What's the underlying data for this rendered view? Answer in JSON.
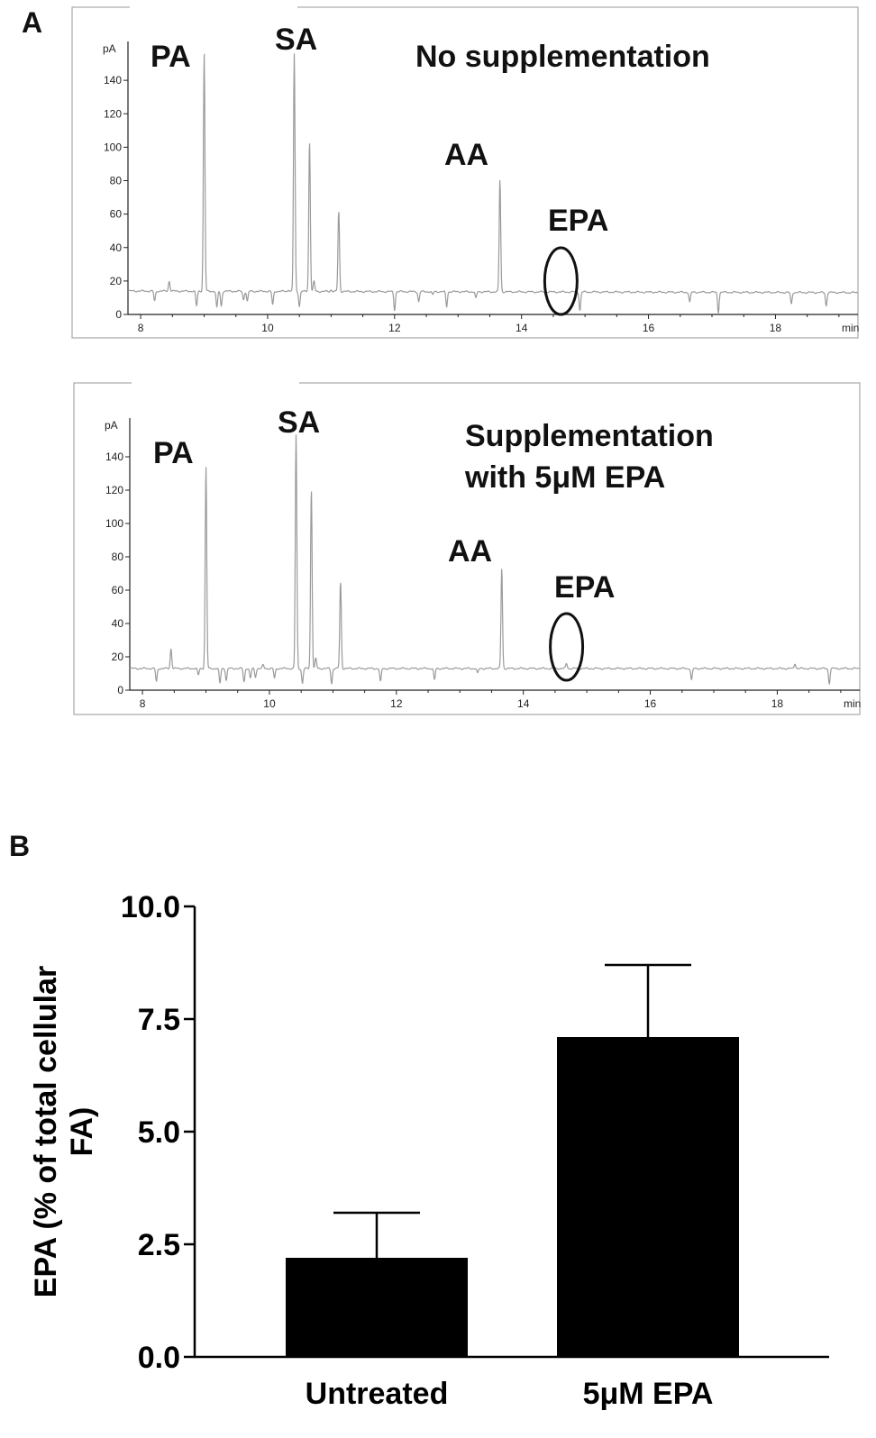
{
  "panels": {
    "a_letter": "A",
    "b_letter": "B"
  },
  "chart_data": [
    {
      "type": "line",
      "panel": "A",
      "title": "No supplementation",
      "title_lines": [
        "No supplementation"
      ],
      "xlabel": "min",
      "ylabel": "pA",
      "xlim": [
        7.8,
        19.3
      ],
      "ylim": [
        0,
        160
      ],
      "xticks": [
        8,
        10,
        12,
        14,
        16,
        18
      ],
      "yticks": [
        0,
        20,
        40,
        60,
        80,
        100,
        120,
        140
      ],
      "grid": false,
      "baseline": 14,
      "peaks": [
        [
          8.22,
          8
        ],
        [
          8.45,
          20
        ],
        [
          8.88,
          5
        ],
        [
          9.0,
          156
        ],
        [
          9.2,
          4
        ],
        [
          9.27,
          5
        ],
        [
          9.62,
          9
        ],
        [
          9.68,
          8
        ],
        [
          9.85,
          14
        ],
        [
          10.08,
          6
        ],
        [
          10.33,
          15
        ],
        [
          10.42,
          156
        ],
        [
          10.5,
          5
        ],
        [
          10.66,
          104
        ],
        [
          10.73,
          20
        ],
        [
          11.0,
          15
        ],
        [
          11.12,
          62
        ],
        [
          11.75,
          14
        ],
        [
          12.0,
          3
        ],
        [
          12.38,
          8
        ],
        [
          12.6,
          12
        ],
        [
          12.82,
          5
        ],
        [
          13.28,
          10
        ],
        [
          13.66,
          81
        ],
        [
          14.92,
          3
        ],
        [
          16.65,
          8
        ],
        [
          17.1,
          2
        ],
        [
          18.25,
          7
        ],
        [
          18.8,
          6
        ]
      ],
      "annotations": [
        {
          "label": "PA",
          "x": 9.0
        },
        {
          "label": "SA",
          "x": 10.42
        },
        {
          "label": "AA",
          "x": 13.66
        },
        {
          "label": "EPA",
          "x": 14.62,
          "circled": true
        }
      ]
    },
    {
      "type": "line",
      "panel": "A",
      "title": "Supplementation with 5μM EPA",
      "title_lines": [
        "Supplementation",
        "with 5μM EPA"
      ],
      "xlabel": "min",
      "ylabel": "pA",
      "xlim": [
        7.8,
        19.3
      ],
      "ylim": [
        0,
        160
      ],
      "xticks": [
        8,
        10,
        12,
        14,
        16,
        18
      ],
      "yticks": [
        0,
        20,
        40,
        60,
        80,
        100,
        120,
        140
      ],
      "grid": false,
      "baseline": 13,
      "peaks": [
        [
          8.22,
          5
        ],
        [
          8.45,
          25
        ],
        [
          8.88,
          9
        ],
        [
          9.0,
          134
        ],
        [
          9.22,
          4
        ],
        [
          9.32,
          6
        ],
        [
          9.6,
          5
        ],
        [
          9.7,
          7
        ],
        [
          9.78,
          8
        ],
        [
          9.9,
          15
        ],
        [
          10.08,
          7
        ],
        [
          10.42,
          153
        ],
        [
          10.52,
          4
        ],
        [
          10.66,
          121
        ],
        [
          10.73,
          19
        ],
        [
          10.98,
          4
        ],
        [
          11.12,
          65
        ],
        [
          11.75,
          5
        ],
        [
          12.6,
          6
        ],
        [
          13.28,
          10
        ],
        [
          13.66,
          73
        ],
        [
          14.68,
          16
        ],
        [
          16.65,
          6
        ],
        [
          18.28,
          16
        ],
        [
          18.82,
          4
        ]
      ],
      "annotations": [
        {
          "label": "PA",
          "x": 9.0
        },
        {
          "label": "SA",
          "x": 10.42
        },
        {
          "label": "AA",
          "x": 13.66
        },
        {
          "label": "EPA",
          "x": 14.68,
          "circled": true
        }
      ]
    },
    {
      "type": "bar",
      "panel": "B",
      "categories": [
        "Untreated",
        "5μM EPA"
      ],
      "values": [
        2.2,
        7.1
      ],
      "errors": [
        1.0,
        1.6
      ],
      "ylabel": "EPA (% of total cellular FA)",
      "ylabel_lines": [
        "EPA (% of total cellular",
        "FA)"
      ],
      "ylim": [
        0,
        10
      ],
      "yticks": [
        "0.0",
        "2.5",
        "5.0",
        "7.5",
        "10.0"
      ],
      "bar_color": "#000000",
      "grid": false
    }
  ]
}
